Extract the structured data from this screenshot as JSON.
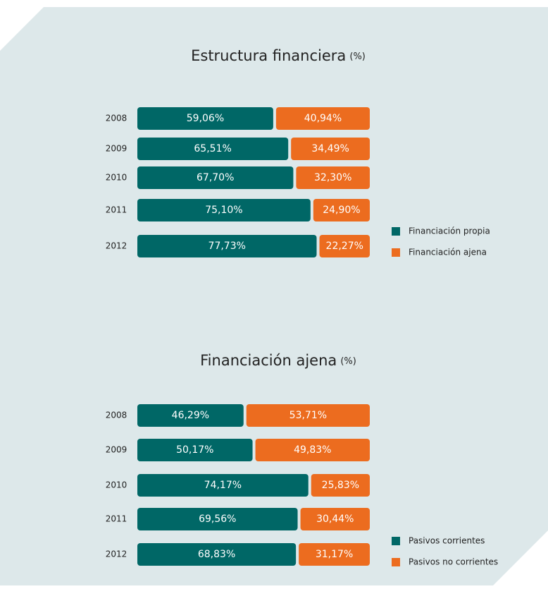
{
  "chart_data": [
    {
      "type": "bar",
      "orientation": "horizontal",
      "stacked": true,
      "title": "Estructura financiera",
      "title_unit": "(%)",
      "categories": [
        "2008",
        "2009",
        "2010",
        "2011",
        "2012"
      ],
      "xlim": [
        0,
        100
      ],
      "series": [
        {
          "name": "Financiación propia",
          "color": "#006766",
          "values": [
            59.06,
            65.51,
            67.7,
            75.1,
            77.73
          ],
          "value_labels": [
            "59,06%",
            "65,51%",
            "67,70%",
            "75,10%",
            "77,73%"
          ]
        },
        {
          "name": "Financiación ajena",
          "color": "#ec6c1f",
          "values": [
            40.94,
            34.49,
            32.3,
            24.9,
            22.27
          ],
          "value_labels": [
            "40,94%",
            "34,49%",
            "32,30%",
            "24,90%",
            "22,27%"
          ]
        }
      ]
    },
    {
      "type": "bar",
      "orientation": "horizontal",
      "stacked": true,
      "title": "Financiación ajena",
      "title_unit": "(%)",
      "categories": [
        "2008",
        "2009",
        "2010",
        "2011",
        "2012"
      ],
      "xlim": [
        0,
        100
      ],
      "series": [
        {
          "name": "Pasivos corrientes",
          "color": "#006766",
          "values": [
            46.29,
            50.17,
            74.17,
            69.56,
            68.83
          ],
          "value_labels": [
            "46,29%",
            "50,17%",
            "74,17%",
            "69,56%",
            "68,83%"
          ]
        },
        {
          "name": "Pasivos no corrientes",
          "color": "#ec6c1f",
          "values": [
            53.71,
            49.83,
            25.83,
            30.44,
            31.17
          ],
          "value_labels": [
            "53,71%",
            "49,83%",
            "25,83%",
            "30,44%",
            "31,17%"
          ]
        }
      ]
    }
  ]
}
